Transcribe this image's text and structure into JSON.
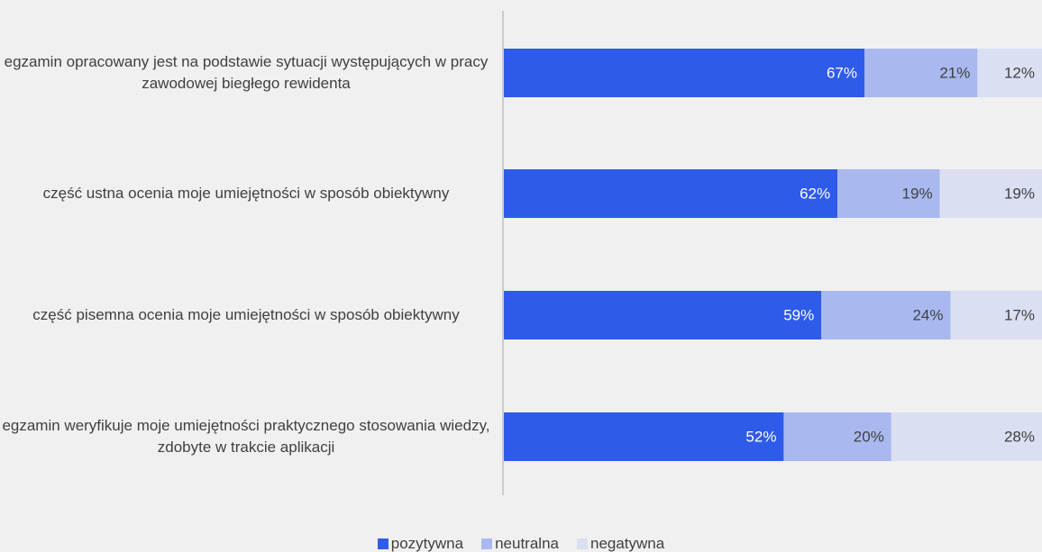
{
  "chart_data": {
    "type": "bar",
    "orientation": "horizontal",
    "stacked": true,
    "categories": [
      "egzamin opracowany jest na podstawie sytuacji występujących w pracy zawodowej biegłego rewidenta",
      "część ustna ocenia moje umiejętności w sposób obiektywny",
      "część pisemna ocenia moje umiejętności w sposób obiektywny",
      "egzamin weryfikuje moje umiejętności praktycznego stosowania wiedzy, zdobyte w trakcie aplikacji"
    ],
    "series": [
      {
        "name": "pozytywna",
        "color": "#2f5bea",
        "values": [
          67,
          62,
          59,
          52
        ],
        "value_labels": [
          "67%",
          "62%",
          "59%",
          "52%"
        ]
      },
      {
        "name": "neutralna",
        "color": "#a9b9ef",
        "values": [
          21,
          19,
          24,
          20
        ],
        "value_labels": [
          "21%",
          "19%",
          "24%",
          "20%"
        ]
      },
      {
        "name": "negatywna",
        "color": "#dadff2",
        "values": [
          12,
          19,
          17,
          28
        ],
        "value_labels": [
          "12%",
          "19%",
          "17%",
          "28%"
        ]
      }
    ],
    "xlim": [
      0,
      100
    ]
  }
}
